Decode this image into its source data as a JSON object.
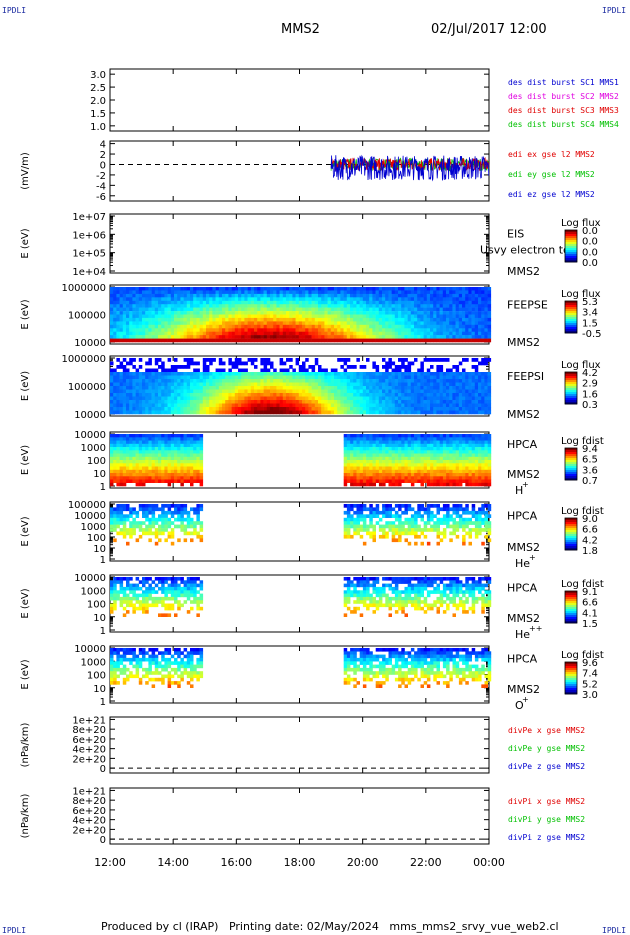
{
  "header": {
    "brand": "IPDLI",
    "spacecraft": "MMS2",
    "date": "02/Jul/2017 12:00"
  },
  "footer": {
    "text": "Produced by cl (IRAP)   Printing date: 02/May/2024   mms_mms2_srvy_vue_web2.cl"
  },
  "colors": {
    "blue": "#0000d0",
    "green": "#00c000",
    "red": "#e00000",
    "magenta": "#e000e0",
    "gray": "#808080"
  },
  "chart_data": [
    {
      "id": "dist-burst",
      "type": "line",
      "ylabel": "",
      "ylim": [
        0.8,
        3.2
      ],
      "ticks": [
        "3.0",
        "2.5",
        "2.0",
        "1.5",
        "1.0"
      ],
      "tick_values": [
        3.0,
        2.5,
        2.0,
        1.5,
        1.0
      ],
      "legend": [
        {
          "text": "des dist burst SC1 MMS1",
          "color": "#0000d0"
        },
        {
          "text": "des dist burst SC2 MMS2",
          "color": "#e000e0"
        },
        {
          "text": "des dist burst SC3 MMS3",
          "color": "#e00000"
        },
        {
          "text": "des dist burst SC4 MMS4",
          "color": "#00c000"
        }
      ],
      "series": []
    },
    {
      "id": "edi-e",
      "type": "line",
      "ylabel": "(mV/m)",
      "ylim": [
        -7,
        4.5
      ],
      "ticks": [
        "4",
        "2",
        "0",
        "-2",
        "-4",
        "-6"
      ],
      "tick_values": [
        4,
        2,
        0,
        -2,
        -4,
        -6
      ],
      "zero_line": true,
      "data_range_hours": [
        19.0,
        24.0
      ],
      "legend": [
        {
          "text": "edi ex gse l2 MMS2",
          "color": "#e00000"
        },
        {
          "text": "edi ey gse l2 MMS2",
          "color": "#00c000"
        },
        {
          "text": "edi ez gse l2 MMS2",
          "color": "#0000d0"
        }
      ]
    },
    {
      "id": "eis",
      "type": "heatmap",
      "ylabel": "E (eV)",
      "scale": "log",
      "ticks": [
        "1e+07",
        "1e+06",
        "1e+05",
        "1e+04"
      ],
      "tick_values": [
        10000000,
        1000000,
        100000,
        10000
      ],
      "instrument": "EIS",
      "instrument_sub": "MMS2",
      "overlay_text": "Usvy electron to",
      "cbar_title": "Log flux",
      "cbar_ticks": [
        "0.0",
        "0.0",
        "0.0",
        "0.0"
      ]
    },
    {
      "id": "feepse",
      "type": "heatmap",
      "ylabel": "E (eV)",
      "scale": "log",
      "ticks": [
        "1000000",
        "100000",
        "10000"
      ],
      "tick_values": [
        1000000,
        100000,
        10000
      ],
      "instrument": "FEEPSE",
      "instrument_sub": "MMS2",
      "cbar_title": "Log flux",
      "cbar_ticks": [
        "5.3",
        "3.4",
        "1.5",
        "-0.5"
      ]
    },
    {
      "id": "feepsi",
      "type": "heatmap",
      "ylabel": "E (eV)",
      "scale": "log",
      "ticks": [
        "1000000",
        "100000",
        "10000"
      ],
      "tick_values": [
        1000000,
        100000,
        10000
      ],
      "instrument": "FEEPSI",
      "instrument_sub": "MMS2",
      "cbar_title": "Log flux",
      "cbar_ticks": [
        "4.2",
        "2.9",
        "1.6",
        "0.3"
      ]
    },
    {
      "id": "hpca-h",
      "type": "heatmap",
      "ylabel": "E (eV)",
      "scale": "log",
      "ticks": [
        "10000",
        "1000",
        "100",
        "10",
        "1"
      ],
      "tick_values": [
        10000,
        1000,
        100,
        10,
        1
      ],
      "instrument": "HPCA",
      "instrument_sub": "MMS2",
      "species": "H",
      "species_sup": "+",
      "cbar_title": "Log fdist",
      "cbar_ticks": [
        "9.4",
        "6.5",
        "3.6",
        "0.7"
      ],
      "data_ranges_hours": [
        [
          12.0,
          14.85
        ],
        [
          19.4,
          24.0
        ]
      ]
    },
    {
      "id": "hpca-he",
      "type": "heatmap",
      "ylabel": "E (eV)",
      "scale": "log",
      "ticks": [
        "100000",
        "10000",
        "1000",
        "100",
        "10",
        "1"
      ],
      "tick_values": [
        100000,
        10000,
        1000,
        100,
        10,
        1
      ],
      "instrument": "HPCA",
      "instrument_sub": "MMS2",
      "species": "He",
      "species_sup": "+",
      "cbar_title": "Log fdist",
      "cbar_ticks": [
        "9.0",
        "6.6",
        "4.2",
        "1.8"
      ],
      "data_ranges_hours": [
        [
          12.0,
          14.85
        ],
        [
          19.4,
          24.0
        ]
      ]
    },
    {
      "id": "hpca-hepp",
      "type": "heatmap",
      "ylabel": "E (eV)",
      "scale": "log",
      "ticks": [
        "10000",
        "1000",
        "100",
        "10",
        "1"
      ],
      "tick_values": [
        10000,
        1000,
        100,
        10,
        1
      ],
      "instrument": "HPCA",
      "instrument_sub": "MMS2",
      "species": "He",
      "species_sup": "++",
      "cbar_title": "Log fdist",
      "cbar_ticks": [
        "9.1",
        "6.6",
        "4.1",
        "1.5"
      ],
      "data_ranges_hours": [
        [
          12.0,
          14.85
        ],
        [
          19.4,
          24.0
        ]
      ]
    },
    {
      "id": "hpca-o",
      "type": "heatmap",
      "ylabel": "E (eV)",
      "scale": "log",
      "ticks": [
        "10000",
        "1000",
        "100",
        "10",
        "1"
      ],
      "tick_values": [
        10000,
        1000,
        100,
        10,
        1
      ],
      "instrument": "HPCA",
      "instrument_sub": "MMS2",
      "species": "O",
      "species_sup": "+",
      "cbar_title": "Log fdist",
      "cbar_ticks": [
        "9.6",
        "7.4",
        "5.2",
        "3.0"
      ],
      "data_ranges_hours": [
        [
          12.0,
          14.85
        ],
        [
          19.4,
          24.0
        ]
      ]
    },
    {
      "id": "divpe",
      "type": "line",
      "ylabel": "(nPa/km)",
      "ylim": [
        -1e+20,
        1.05e+21
      ],
      "ticks": [
        "1e+21",
        "8e+20",
        "6e+20",
        "4e+20",
        "2e+20",
        "0"
      ],
      "tick_values": [
        1e+21,
        8e+20,
        6e+20,
        4e+20,
        2e+20,
        0
      ],
      "zero_line": true,
      "legend": [
        {
          "text": "divPe x gse MMS2",
          "color": "#e00000"
        },
        {
          "text": "divPe y gse MMS2",
          "color": "#00c000"
        },
        {
          "text": "divPe z gse MMS2",
          "color": "#0000d0"
        }
      ]
    },
    {
      "id": "divpi",
      "type": "line",
      "ylabel": "(nPa/km)",
      "ylim": [
        -1e+20,
        1.05e+21
      ],
      "ticks": [
        "1e+21",
        "8e+20",
        "6e+20",
        "4e+20",
        "2e+20",
        "0"
      ],
      "tick_values": [
        1e+21,
        8e+20,
        6e+20,
        4e+20,
        2e+20,
        0
      ],
      "zero_line": true,
      "legend": [
        {
          "text": "divPi x gse MMS2",
          "color": "#e00000"
        },
        {
          "text": "divPi y gse MMS2",
          "color": "#00c000"
        },
        {
          "text": "divPi z gse MMS2",
          "color": "#0000d0"
        }
      ]
    }
  ],
  "time_axis": {
    "labels": [
      "12:00",
      "14:00",
      "16:00",
      "18:00",
      "20:00",
      "22:00",
      "00:00"
    ],
    "hours": [
      12,
      14,
      16,
      18,
      20,
      22,
      24
    ],
    "xlim_hours": [
      12,
      24
    ]
  }
}
